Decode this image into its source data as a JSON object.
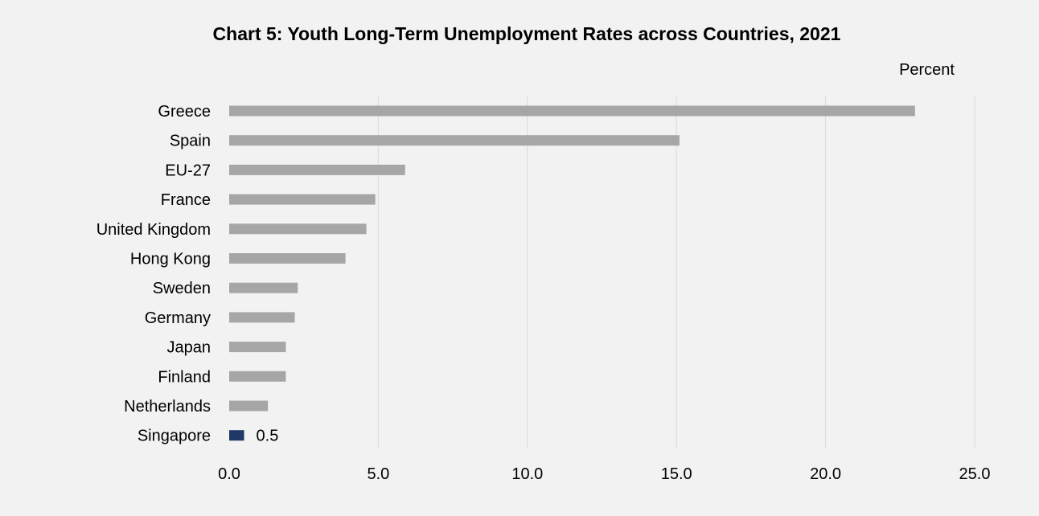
{
  "chart_data": {
    "type": "bar",
    "orientation": "horizontal",
    "title": "Chart 5: Youth Long-Term Unemployment Rates across Countries, 2021",
    "unit_label": "Percent",
    "xlim": [
      0,
      25
    ],
    "x_ticks": [
      0,
      5,
      10,
      15,
      20,
      25
    ],
    "x_tick_labels": [
      "0.0",
      "5.0",
      "10.0",
      "15.0",
      "20.0",
      "25.0"
    ],
    "grid": true,
    "categories": [
      "Greece",
      "Spain",
      "EU-27",
      "France",
      "United Kingdom",
      "Hong Kong",
      "Sweden",
      "Germany",
      "Japan",
      "Finland",
      "Netherlands",
      "Singapore"
    ],
    "values": [
      23.0,
      15.1,
      5.9,
      4.9,
      4.6,
      3.9,
      2.3,
      2.2,
      1.9,
      1.9,
      1.3,
      0.5
    ],
    "bar_colors": [
      "#a6a6a6",
      "#a6a6a6",
      "#a6a6a6",
      "#a6a6a6",
      "#a6a6a6",
      "#a6a6a6",
      "#a6a6a6",
      "#a6a6a6",
      "#a6a6a6",
      "#a6a6a6",
      "#a6a6a6",
      "#1f3864"
    ],
    "data_labels": [
      {
        "category": "Singapore",
        "text": "0.5"
      }
    ]
  }
}
